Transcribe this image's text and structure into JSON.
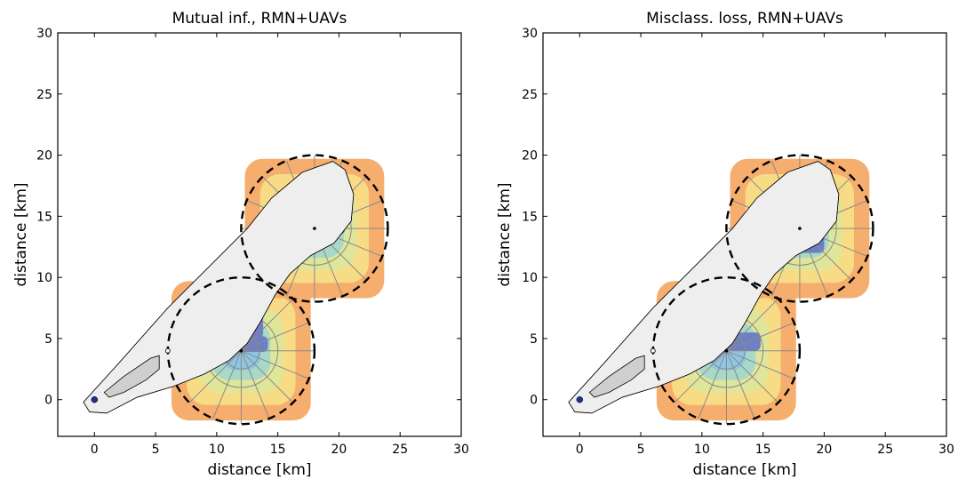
{
  "chart_data": [
    {
      "type": "heatmap",
      "title": "Mutual inf., RMN+UAVs",
      "xlabel": "distance [km]",
      "ylabel": "distance [km]",
      "xlim": [
        -3,
        30
      ],
      "ylim": [
        -3,
        30
      ],
      "xticks": [
        0,
        5,
        10,
        15,
        20,
        25,
        30
      ],
      "yticks": [
        0,
        5,
        10,
        15,
        20,
        25,
        30
      ],
      "grid": false,
      "colormap": [
        "#6f7fc4",
        "#8fc6e3",
        "#a8d8c8",
        "#dfe69a",
        "#f8dc85",
        "#f6ae6f",
        "#e07a5a"
      ],
      "source_marker": {
        "x": 0,
        "y": 0,
        "color": "#1f2f9a"
      },
      "uav_coverage": [
        {
          "center": [
            12,
            4
          ],
          "radius": 6,
          "cells": [
            {
              "x0": 12.0,
              "x1": 12.0,
              "y0": 4.0,
              "y1": 4.0,
              "color": "#6f7fc4"
            },
            {
              "x0": 11.8,
              "x1": 14.2,
              "y0": 3.9,
              "y1": 5.2,
              "color": "#6f7fc4"
            },
            {
              "x0": 12.3,
              "x1": 13.8,
              "y0": 5.0,
              "y1": 8.5,
              "color": "#6f7fc4"
            }
          ]
        },
        {
          "center": [
            18,
            14
          ],
          "radius": 6,
          "cells": [
            {
              "x0": 16.0,
              "x1": 20.5,
              "y0": 13.5,
              "y1": 15.0,
              "color": "#6f7fc4"
            }
          ]
        }
      ]
    },
    {
      "type": "heatmap",
      "title": "Misclass. loss, RMN+UAVs",
      "xlabel": "distance [km]",
      "ylabel": "distance [km]",
      "xlim": [
        -3,
        30
      ],
      "ylim": [
        -3,
        30
      ],
      "xticks": [
        0,
        5,
        10,
        15,
        20,
        25,
        30
      ],
      "yticks": [
        0,
        5,
        10,
        15,
        20,
        25,
        30
      ],
      "grid": false,
      "colormap": [
        "#6f7fc4",
        "#8fc6e3",
        "#a8d8c8",
        "#dfe69a",
        "#f8dc85",
        "#f6ae6f",
        "#e07a5a"
      ],
      "source_marker": {
        "x": 0,
        "y": 0,
        "color": "#1f2f9a"
      },
      "uav_coverage": [
        {
          "center": [
            12,
            4
          ],
          "radius": 6,
          "cells": [
            {
              "x0": 12.0,
              "x1": 14.8,
              "y0": 4.0,
              "y1": 5.5,
              "color": "#6f7fc4"
            }
          ]
        },
        {
          "center": [
            18,
            14
          ],
          "radius": 6,
          "cells": [
            {
              "x0": 16.5,
              "x1": 20.0,
              "y0": 12.0,
              "y1": 17.0,
              "color": "#6f7fc4"
            }
          ]
        }
      ]
    }
  ]
}
